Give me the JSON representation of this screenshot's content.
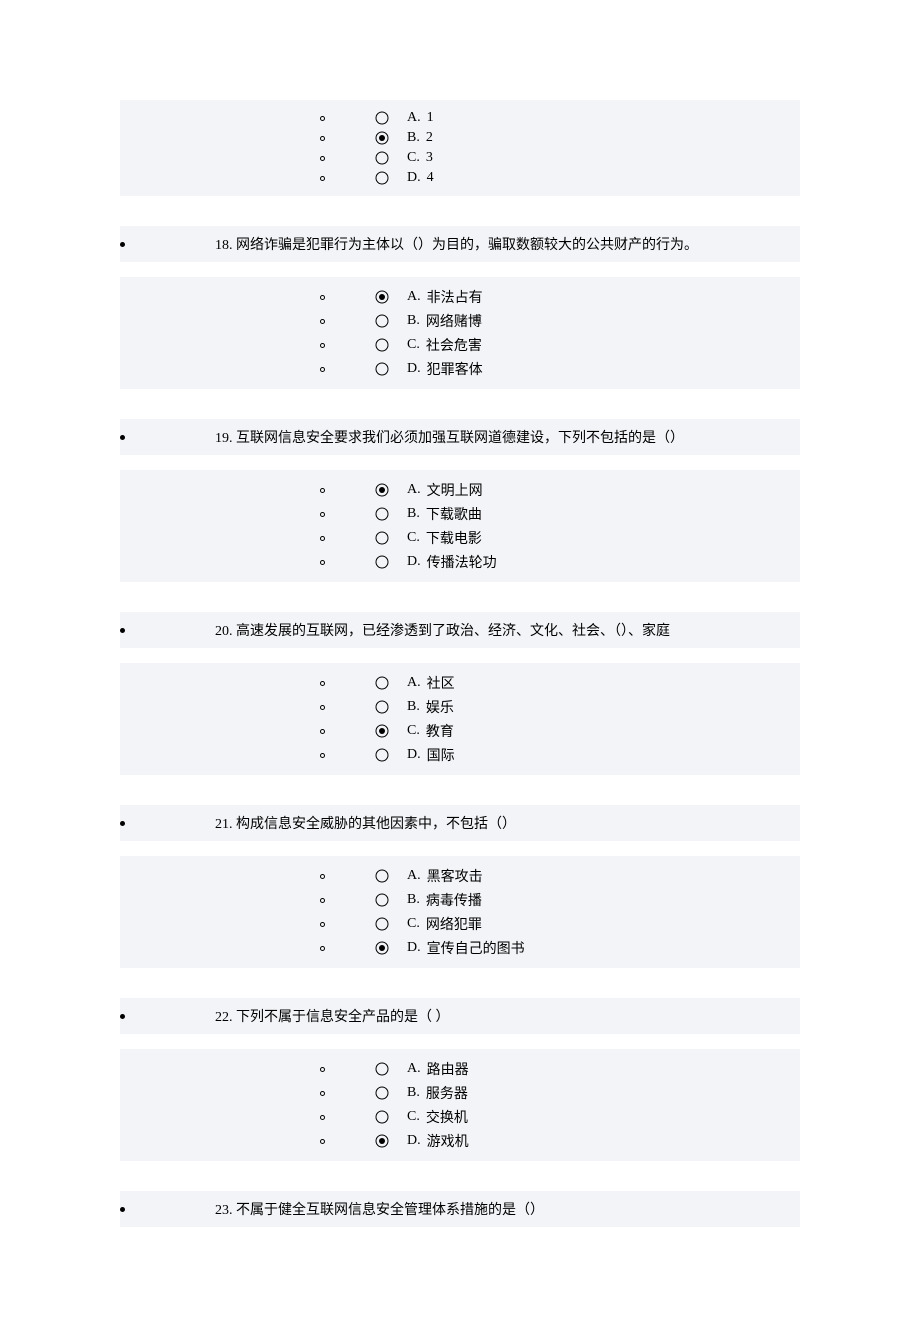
{
  "questions": [
    {
      "number": "",
      "text": "",
      "shaded_header": false,
      "options": [
        {
          "letter": "A.",
          "text": "1",
          "selected": false
        },
        {
          "letter": "B.",
          "text": "2",
          "selected": true
        },
        {
          "letter": "C.",
          "text": "3",
          "selected": false
        },
        {
          "letter": "D.",
          "text": "4",
          "selected": false
        }
      ]
    },
    {
      "number": "18.",
      "text": "网络诈骗是犯罪行为主体以（）为目的，骗取数额较大的公共财产的行为。",
      "shaded_header": true,
      "options": [
        {
          "letter": "A.",
          "text": "非法占有",
          "selected": true
        },
        {
          "letter": "B.",
          "text": "网络赌博",
          "selected": false
        },
        {
          "letter": "C.",
          "text": "社会危害",
          "selected": false
        },
        {
          "letter": "D.",
          "text": "犯罪客体",
          "selected": false
        }
      ]
    },
    {
      "number": "19.",
      "text": "互联网信息安全要求我们必须加强互联网道德建设，下列不包括的是（）",
      "shaded_header": true,
      "options": [
        {
          "letter": "A.",
          "text": "文明上网",
          "selected": true
        },
        {
          "letter": "B.",
          "text": "下载歌曲",
          "selected": false
        },
        {
          "letter": "C.",
          "text": "下载电影",
          "selected": false
        },
        {
          "letter": "D.",
          "text": "传播法轮功",
          "selected": false
        }
      ]
    },
    {
      "number": "20.",
      "text": "高速发展的互联网，已经渗透到了政治、经济、文化、社会、（）、家庭",
      "shaded_header": true,
      "options": [
        {
          "letter": "A.",
          "text": "社区",
          "selected": false
        },
        {
          "letter": "B.",
          "text": "娱乐",
          "selected": false
        },
        {
          "letter": "C.",
          "text": "教育",
          "selected": true
        },
        {
          "letter": "D.",
          "text": "国际",
          "selected": false
        }
      ]
    },
    {
      "number": "21.",
      "text": "构成信息安全威胁的其他因素中，不包括（）",
      "shaded_header": true,
      "options": [
        {
          "letter": "A.",
          "text": "黑客攻击",
          "selected": false
        },
        {
          "letter": "B.",
          "text": "病毒传播",
          "selected": false
        },
        {
          "letter": "C.",
          "text": "网络犯罪",
          "selected": false
        },
        {
          "letter": "D.",
          "text": "宣传自己的图书",
          "selected": true
        }
      ]
    },
    {
      "number": "22.",
      "text": "下列不属于信息安全产品的是（ ）",
      "shaded_header": true,
      "options": [
        {
          "letter": "A.",
          "text": "路由器",
          "selected": false
        },
        {
          "letter": "B.",
          "text": "服务器",
          "selected": false
        },
        {
          "letter": "C.",
          "text": "交换机",
          "selected": false
        },
        {
          "letter": "D.",
          "text": "游戏机",
          "selected": true
        }
      ]
    },
    {
      "number": "23.",
      "text": "不属于健全互联网信息安全管理体系措施的是（）",
      "shaded_header": true,
      "options": []
    }
  ],
  "colors": {
    "shaded_bg": "#f2f4f7",
    "text_color": "#000000"
  },
  "fonts": {
    "body_fontsize": 14,
    "body_family": "SimSun"
  }
}
